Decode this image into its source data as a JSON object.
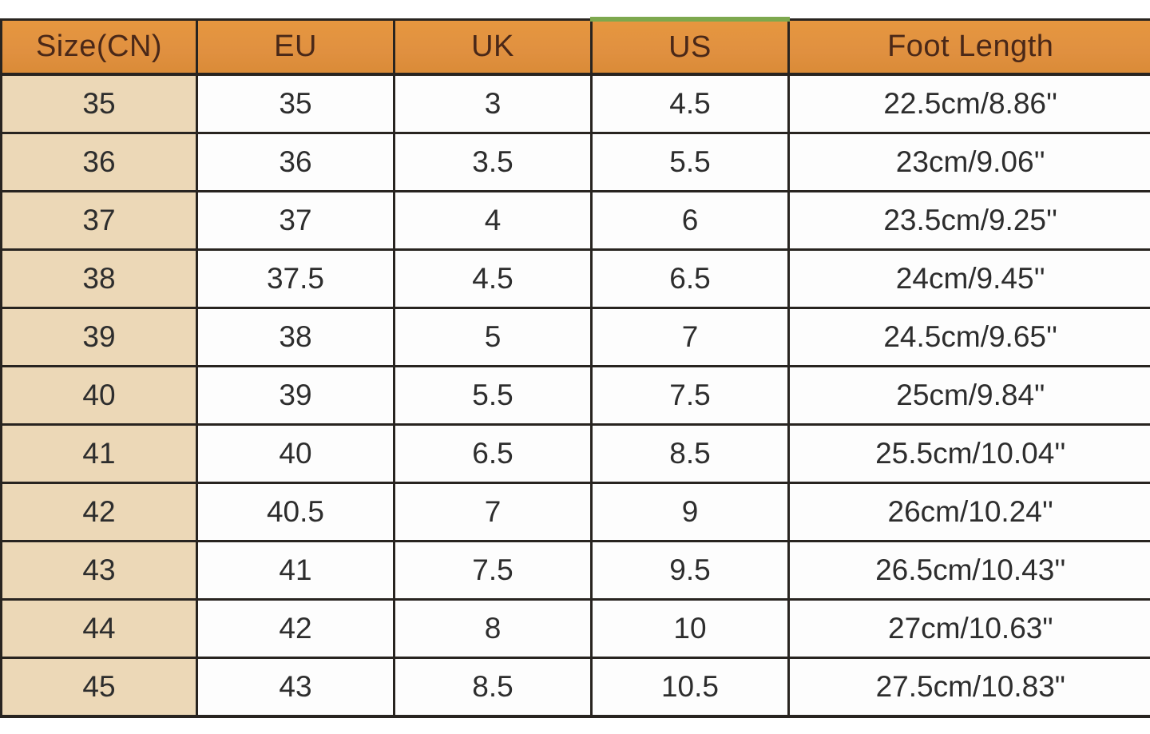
{
  "chart_data": {
    "type": "table",
    "columns": [
      {
        "key": "cn",
        "label": "Size(CN)"
      },
      {
        "key": "eu",
        "label": "EU"
      },
      {
        "key": "uk",
        "label": "UK"
      },
      {
        "key": "us",
        "label": "US"
      },
      {
        "key": "foot",
        "label": "Foot Length"
      }
    ],
    "rows": [
      {
        "cn": "35",
        "eu": "35",
        "uk": "3",
        "us": "4.5",
        "foot": "22.5cm/8.86''"
      },
      {
        "cn": "36",
        "eu": "36",
        "uk": "3.5",
        "us": "5.5",
        "foot": "23cm/9.06''"
      },
      {
        "cn": "37",
        "eu": "37",
        "uk": "4",
        "us": "6",
        "foot": "23.5cm/9.25''"
      },
      {
        "cn": "38",
        "eu": "37.5",
        "uk": "4.5",
        "us": "6.5",
        "foot": "24cm/9.45''"
      },
      {
        "cn": "39",
        "eu": "38",
        "uk": "5",
        "us": "7",
        "foot": "24.5cm/9.65''"
      },
      {
        "cn": "40",
        "eu": "39",
        "uk": "5.5",
        "us": "7.5",
        "foot": "25cm/9.84\""
      },
      {
        "cn": "41",
        "eu": "40",
        "uk": "6.5",
        "us": "8.5",
        "foot": "25.5cm/10.04''"
      },
      {
        "cn": "42",
        "eu": "40.5",
        "uk": "7",
        "us": "9",
        "foot": "26cm/10.24''"
      },
      {
        "cn": "43",
        "eu": "41",
        "uk": "7.5",
        "us": "9.5",
        "foot": "26.5cm/10.43''"
      },
      {
        "cn": "44",
        "eu": "42",
        "uk": "8",
        "us": "10",
        "foot": "27cm/10.63\""
      },
      {
        "cn": "45",
        "eu": "43",
        "uk": "8.5",
        "us": "10.5",
        "foot": "27.5cm/10.83\""
      }
    ],
    "layout": {
      "grid": true,
      "header_position": "top"
    }
  },
  "colors": {
    "header_bg": "#e09040",
    "header_text": "#4a2818",
    "first_column_bg": "#ecd8b7",
    "cell_bg": "#fdfdfd",
    "body_text": "#2d2d2d",
    "grid_border": "#282420",
    "accent_green_strip": "#7da84e",
    "page_bg": "#ffffff"
  }
}
